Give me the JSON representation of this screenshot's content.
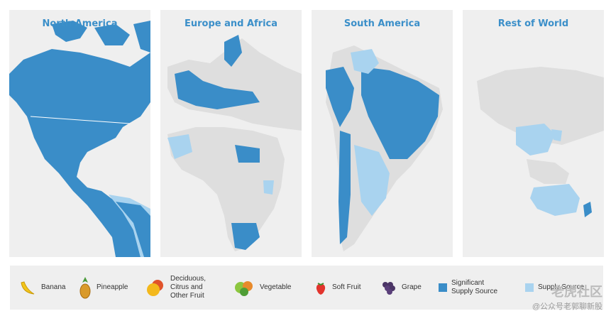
{
  "panels": [
    {
      "title": "North America"
    },
    {
      "title": "Europe and Africa"
    },
    {
      "title": "South America"
    },
    {
      "title": "Rest of World"
    }
  ],
  "legend": {
    "banana": "Banana",
    "pineapple": "Pineapple",
    "deciduous": [
      "Deciduous,",
      "Citrus and",
      "Other Fruit"
    ],
    "vegetable": "Vegetable",
    "soft_fruit": "Soft Fruit",
    "grape": "Grape",
    "significant": [
      "Significant",
      "Supply Source"
    ],
    "supply": "Supply Source"
  },
  "watermark": {
    "line1": "老虎社区",
    "line2": "@公众号老郭聊新股"
  },
  "colors": {
    "significant": "#3a8dc8",
    "supply": "#a9d3ef",
    "land": "#dedede",
    "ocean": "#efefef",
    "title": "#3b8fc9"
  },
  "icons": [
    "banana-icon",
    "pineapple-icon",
    "deciduous-fruit-icon",
    "vegetable-icon",
    "soft-fruit-icon",
    "grape-icon"
  ]
}
